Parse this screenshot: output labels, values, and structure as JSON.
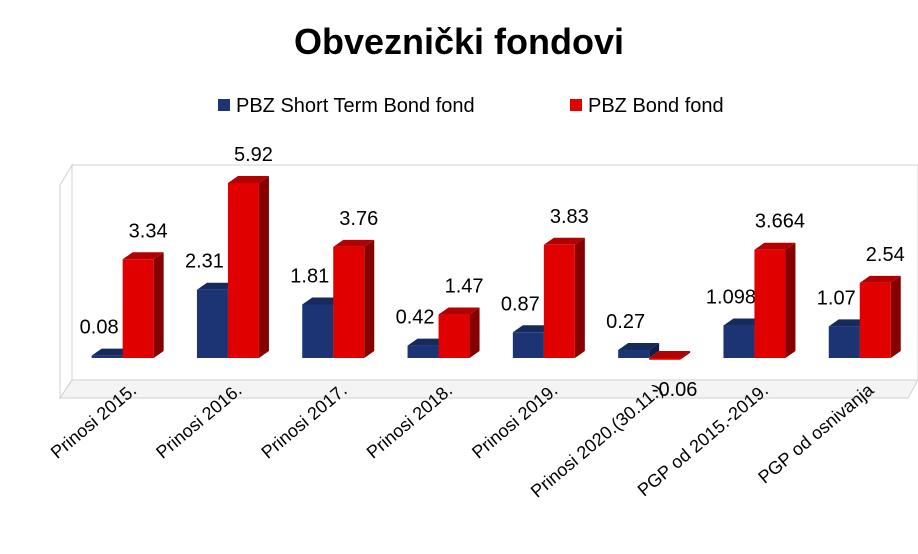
{
  "chart_data": {
    "type": "bar3d",
    "title": "Obveznički fondovi",
    "categories": [
      "Prinosi 2015.",
      "Prinosi 2016.",
      "Prinosi 2017.",
      "Prinosi 2018.",
      "Prinosi 2019.",
      "Prinosi 2020.(30.11.)",
      "PGP od 2015.-2019.",
      "PGP od osnivanja"
    ],
    "series": [
      {
        "name": "PBZ Short Term Bond fond",
        "color": "#1c3473",
        "values": [
          0.08,
          2.31,
          1.81,
          0.42,
          0.87,
          0.27,
          1.098,
          1.07
        ]
      },
      {
        "name": "PBZ Bond fond",
        "color": "#e00000",
        "values": [
          3.34,
          5.92,
          3.76,
          1.47,
          3.83,
          -0.06,
          3.664,
          2.54
        ]
      }
    ],
    "legend": "top"
  }
}
